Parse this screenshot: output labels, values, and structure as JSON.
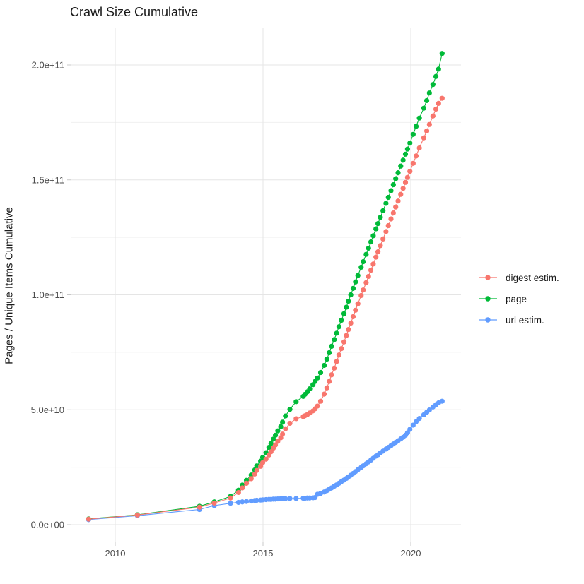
{
  "title": "Crawl Size Cumulative",
  "y_axis": {
    "label": "Pages / Unique Items Cumulative",
    "tick_labels": [
      "0.0e+00",
      "5.0e+10",
      "1.0e+11",
      "1.5e+11",
      "2.0e+11"
    ]
  },
  "x_axis": {
    "tick_labels": [
      "2010",
      "2015",
      "2020"
    ]
  },
  "legend": {
    "items": [
      {
        "label": "digest estim.",
        "color": "#F8766D"
      },
      {
        "label": "page",
        "color": "#00BA38"
      },
      {
        "label": "url estim.",
        "color": "#619CFF"
      }
    ]
  },
  "chart_data": {
    "type": "scatter",
    "style": "points-with-line",
    "title": "Crawl Size Cumulative",
    "xlabel": "",
    "ylabel": "Pages / Unique Items Cumulative",
    "y_unit": "items, billions (1e9)",
    "x_unit": "year (crawl date)",
    "xlim": [
      2008.6,
      2021.7
    ],
    "ylim_billions": [
      0,
      210
    ],
    "grid": true,
    "legend_position": "right",
    "x_major_ticks": [
      2010,
      2015,
      2020
    ],
    "x_minor_ticks": [
      2012.5,
      2017.5
    ],
    "y_major_ticks_billions": [
      0,
      50,
      100,
      150,
      200
    ],
    "y_minor_ticks_billions": [
      25,
      75,
      125,
      175
    ],
    "x": [
      2009.1,
      2010.75,
      2012.85,
      2013.35,
      2013.9,
      2014.17,
      2014.3,
      2014.44,
      2014.6,
      2014.72,
      2014.79,
      2014.92,
      2014.99,
      2015.1,
      2015.2,
      2015.27,
      2015.35,
      2015.42,
      2015.5,
      2015.6,
      2015.66,
      2015.76,
      2015.91,
      2016.12,
      2016.36,
      2016.42,
      2016.5,
      2016.58,
      2016.69,
      2016.76,
      2016.84,
      2016.95,
      2017.07,
      2017.16,
      2017.24,
      2017.32,
      2017.41,
      2017.49,
      2017.57,
      2017.65,
      2017.74,
      2017.82,
      2017.89,
      2017.97,
      2018.05,
      2018.13,
      2018.21,
      2018.32,
      2018.39,
      2018.49,
      2018.57,
      2018.65,
      2018.73,
      2018.82,
      2018.89,
      2018.97,
      2019.06,
      2019.16,
      2019.24,
      2019.33,
      2019.41,
      2019.49,
      2019.57,
      2019.66,
      2019.74,
      2019.82,
      2019.89,
      2019.97,
      2020.08,
      2020.18,
      2020.29,
      2020.44,
      2020.54,
      2020.63,
      2020.75,
      2020.85,
      2020.94,
      2021.06
    ],
    "series": [
      {
        "name": "digest estim.",
        "color": "#F8766D",
        "values_billions": [
          2.4,
          4.2,
          7.6,
          9.4,
          11.6,
          14.0,
          16.0,
          18.0,
          20.0,
          22.0,
          23.6,
          25.4,
          27.0,
          28.5,
          30.3,
          31.7,
          33.3,
          34.7,
          36.3,
          37.8,
          39.4,
          41.7,
          44.1,
          46.1,
          47.0,
          47.4,
          47.9,
          48.6,
          49.5,
          50.4,
          51.6,
          53.7,
          56.8,
          59.5,
          62.3,
          65.2,
          68.1,
          71.0,
          73.8,
          76.6,
          79.5,
          82.3,
          84.9,
          87.7,
          90.5,
          93.3,
          96.1,
          99.7,
          102.1,
          105.3,
          108.0,
          110.7,
          113.4,
          116.4,
          118.7,
          121.4,
          124.3,
          127.5,
          130.1,
          133.0,
          135.6,
          138.2,
          140.8,
          143.7,
          146.3,
          148.9,
          151.1,
          153.7,
          157.2,
          160.4,
          163.9,
          168.3,
          171.3,
          174.1,
          177.8,
          180.8,
          183.3,
          185.5
        ]
      },
      {
        "name": "page",
        "color": "#00BA38",
        "values_billions": [
          2.5,
          4.3,
          8.0,
          9.9,
          12.3,
          15.0,
          17.2,
          19.3,
          21.6,
          23.8,
          25.6,
          27.6,
          29.3,
          31.3,
          33.6,
          35.3,
          37.2,
          38.9,
          40.8,
          42.6,
          44.6,
          47.3,
          50.2,
          53.5,
          55.8,
          56.7,
          57.8,
          59.1,
          60.9,
          62.3,
          63.8,
          66.2,
          69.3,
          72.0,
          74.8,
          77.6,
          80.5,
          83.3,
          86.1,
          88.9,
          91.8,
          94.6,
          97.2,
          100.0,
          102.8,
          105.6,
          108.4,
          112.0,
          114.4,
          117.6,
          120.3,
          123.0,
          125.7,
          128.7,
          131.0,
          133.7,
          136.6,
          139.8,
          142.4,
          145.3,
          147.9,
          150.5,
          153.1,
          156.0,
          158.6,
          161.2,
          163.4,
          166.0,
          169.8,
          173.3,
          176.9,
          181.2,
          184.5,
          187.8,
          191.5,
          195.0,
          198.2,
          205.0
        ]
      },
      {
        "name": "url estim.",
        "color": "#619CFF",
        "values_billions": [
          2.2,
          3.9,
          6.6,
          8.3,
          9.3,
          9.7,
          9.9,
          10.1,
          10.3,
          10.5,
          10.6,
          10.7,
          10.8,
          10.9,
          11.0,
          11.0,
          11.1,
          11.1,
          11.2,
          11.3,
          11.3,
          11.3,
          11.4,
          11.4,
          11.5,
          11.5,
          11.6,
          11.6,
          11.7,
          11.8,
          13.2,
          13.6,
          14.2,
          14.8,
          15.4,
          16.0,
          16.7,
          17.3,
          18.0,
          18.7,
          19.4,
          20.1,
          20.8,
          21.5,
          22.3,
          23.1,
          23.9,
          24.9,
          25.6,
          26.5,
          27.3,
          28.1,
          28.9,
          29.8,
          30.4,
          31.2,
          32.0,
          32.9,
          33.6,
          34.4,
          35.1,
          35.8,
          36.5,
          37.3,
          38.0,
          38.9,
          40.0,
          41.5,
          43.3,
          44.8,
          46.2,
          47.8,
          48.9,
          49.9,
          51.2,
          52.2,
          53.0,
          53.7
        ]
      }
    ]
  }
}
